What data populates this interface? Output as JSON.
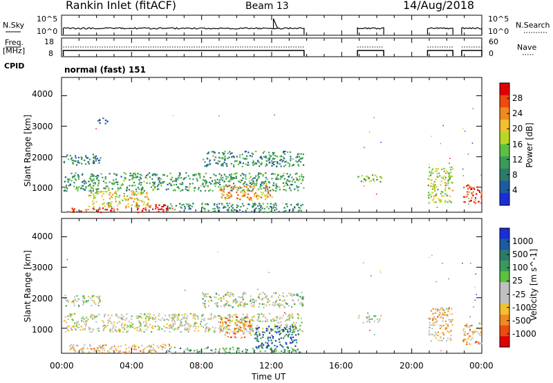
{
  "header": {
    "title": "Rankin Inlet (fitACF)",
    "beam": "Beam 13",
    "date": "14/Aug/2018"
  },
  "top_panels": {
    "nsky_label": "N.Sky",
    "nsky_ticks": [
      "10^5",
      "10^0"
    ],
    "nsearch_label": "N.Search",
    "nsearch_ticks": [
      "10^5",
      "10^0"
    ],
    "freq_label": "Freq.",
    "freq_unit": "[MHz]",
    "freq_ticks": [
      "18",
      "8"
    ],
    "nave_label": "Nave",
    "nave_ticks": [
      "60",
      "0"
    ],
    "cpid_label": "CPID",
    "cpid_value": "normal (fast) 151",
    "data_segments_hours": [
      [
        0.1,
        13.85
      ],
      [
        16.9,
        18.4
      ],
      [
        20.9,
        22.35
      ],
      [
        22.85,
        24.0
      ]
    ]
  },
  "chart_data": [
    {
      "type": "heatmap",
      "name": "power",
      "ylabel": "Slant Range [km]",
      "xlabel": "",
      "x_range_hours": [
        0,
        24
      ],
      "ylim": [
        180,
        4600
      ],
      "yticks": [
        "4000",
        "3000",
        "2000",
        "1000"
      ],
      "colorbar_label": "Power [dB]",
      "colorbar_ticks": [
        "28",
        "24",
        "20",
        "16",
        "12",
        "8",
        "4"
      ],
      "colorbar_colors": [
        "#e00000",
        "#f04a10",
        "#f08a20",
        "#f2c030",
        "#b8d828",
        "#5cc040",
        "#3a9a5a",
        "#2e7a6a",
        "#1e5aa0",
        "#1a2ed8"
      ],
      "echo_regions": [
        {
          "t": [
            0.1,
            2.2
          ],
          "r": [
            1750,
            2100
          ],
          "level": 0.25
        },
        {
          "t": [
            0.1,
            13.8
          ],
          "r": [
            900,
            1500
          ],
          "level": 0.35
        },
        {
          "t": [
            0.3,
            3.5
          ],
          "r": [
            200,
            350
          ],
          "level": 0.9
        },
        {
          "t": [
            4.2,
            6.3
          ],
          "r": [
            200,
            450
          ],
          "level": 1.0
        },
        {
          "t": [
            1.5,
            5.0
          ],
          "r": [
            350,
            900
          ],
          "level": 0.6
        },
        {
          "t": [
            6.0,
            13.8
          ],
          "r": [
            200,
            500
          ],
          "level": 0.3
        },
        {
          "t": [
            9.0,
            12.0
          ],
          "r": [
            600,
            1100
          ],
          "level": 0.7
        },
        {
          "t": [
            8.0,
            13.8
          ],
          "r": [
            1700,
            2200
          ],
          "level": 0.3
        },
        {
          "t": [
            16.9,
            18.3
          ],
          "r": [
            1200,
            1450
          ],
          "level": 0.45
        },
        {
          "t": [
            20.9,
            22.3
          ],
          "r": [
            500,
            1700
          ],
          "level": 0.55
        },
        {
          "t": [
            22.9,
            24.0
          ],
          "r": [
            500,
            1100
          ],
          "level": 0.85
        },
        {
          "t": [
            2.0,
            2.6
          ],
          "r": [
            3100,
            3300
          ],
          "level": 0.2
        }
      ]
    },
    {
      "type": "heatmap",
      "name": "velocity",
      "ylabel": "Slant Range [km]",
      "xlabel": "Time UT",
      "x_range_hours": [
        0,
        24
      ],
      "xticks": [
        "00:00",
        "04:00",
        "08:00",
        "12:00",
        "16:00",
        "20:00",
        "00:00"
      ],
      "ylim": [
        180,
        4600
      ],
      "yticks": [
        "4000",
        "3000",
        "2000",
        "1000"
      ],
      "colorbar_label": "Velocity [m s^-1]",
      "colorbar_ticks": [
        "1000",
        "500",
        "100",
        "25",
        "-25",
        "-100",
        "-500",
        "-1000"
      ],
      "colorbar_colors": [
        "#1a2ed8",
        "#1e5aa0",
        "#2e7a6a",
        "#3a9a5a",
        "#5cc040",
        "#c0c0c0",
        "#c0c0c0",
        "#f2c030",
        "#f08a20",
        "#f04a10",
        "#e00000"
      ],
      "echo_regions": [
        {
          "t": [
            0.1,
            2.2
          ],
          "r": [
            1750,
            2100
          ],
          "level": 0.5
        },
        {
          "t": [
            0.1,
            13.8
          ],
          "r": [
            900,
            1500
          ],
          "level": 0.45
        },
        {
          "t": [
            0.3,
            6.3
          ],
          "r": [
            200,
            500
          ],
          "level": 0.35
        },
        {
          "t": [
            6.0,
            13.8
          ],
          "r": [
            200,
            400
          ],
          "level": 0.65
        },
        {
          "t": [
            9.0,
            10.8
          ],
          "r": [
            700,
            1400
          ],
          "level": 0.25
        },
        {
          "t": [
            11.0,
            13.5
          ],
          "r": [
            400,
            1100
          ],
          "level": 0.8
        },
        {
          "t": [
            8.0,
            13.8
          ],
          "r": [
            1700,
            2200
          ],
          "level": 0.5
        },
        {
          "t": [
            16.9,
            18.3
          ],
          "r": [
            1200,
            1450
          ],
          "level": 0.5
        },
        {
          "t": [
            20.9,
            22.3
          ],
          "r": [
            600,
            1700
          ],
          "level": 0.35
        },
        {
          "t": [
            22.9,
            24.0
          ],
          "r": [
            500,
            1200
          ],
          "level": 0.3
        }
      ]
    }
  ]
}
